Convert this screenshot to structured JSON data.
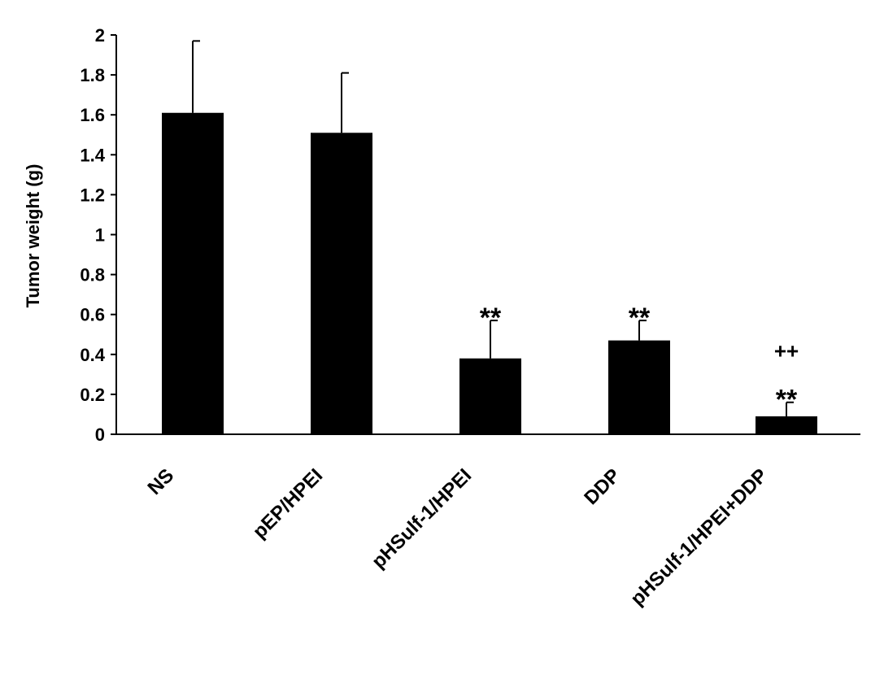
{
  "chart_data": {
    "type": "bar",
    "ylabel": "Tumor weight (g)",
    "ylim": [
      0,
      2
    ],
    "yticks": [
      "0",
      "0.2",
      "0.4",
      "0.6",
      "0.8",
      "1",
      "1.2",
      "1.4",
      "1.6",
      "1.8",
      "2"
    ],
    "categories": [
      "NS",
      "pEP/HPEI",
      "pHSulf-1/HPEI",
      "DDP",
      "pHSulf-1/HPEI+DDP"
    ],
    "values": [
      1.61,
      1.51,
      0.38,
      0.47,
      0.09
    ],
    "errors": [
      0.36,
      0.3,
      0.19,
      0.1,
      0.07
    ],
    "annotations": [
      {
        "category": "pHSulf-1/HPEI",
        "lines": [
          "**"
        ]
      },
      {
        "category": "DDP",
        "lines": [
          "**"
        ]
      },
      {
        "category": "pHSulf-1/HPEI+DDP",
        "lines": [
          "++",
          "**"
        ]
      }
    ],
    "bar_color": "#000000",
    "grid": false,
    "legend": "none"
  }
}
